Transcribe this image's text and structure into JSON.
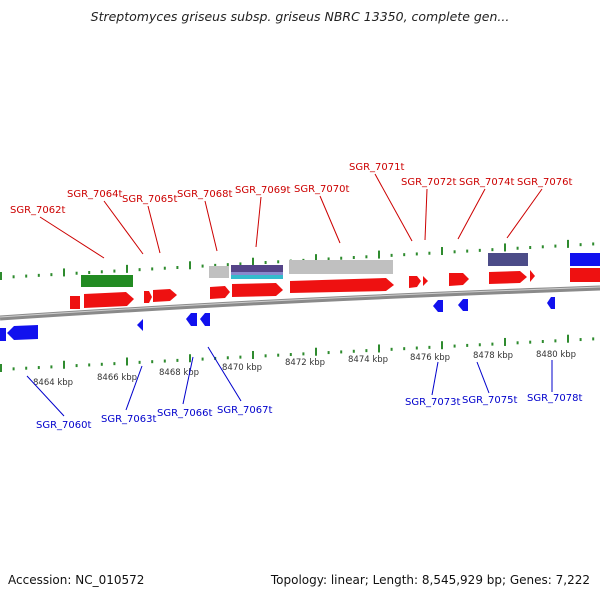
{
  "title": "Streptomyces griseus subsp. griseus NBRC 13350, complete gen...",
  "footer": {
    "accession": "Accession: NC_010572",
    "summary": "Topology: linear; Length: 8,545,929 bp; Genes: 7,222"
  },
  "colors": {
    "forward_gene": "#ee1111",
    "reverse_gene": "#1111ee",
    "top_label": "#cc0000",
    "bottom_label": "#0000cc",
    "ticks": "#2e8b2e",
    "backbone": "#888888"
  },
  "scale_labels": [
    "8464 kbp",
    "8466 kbp",
    "8468 kbp",
    "8470 kbp",
    "8472 kbp",
    "8474 kbp",
    "8476 kbp",
    "8478 kbp",
    "8480 kbp"
  ],
  "top_labels": [
    "SGR_7062t",
    "SGR_7064t",
    "SGR_7065t",
    "SGR_7068t",
    "SGR_7069t",
    "SGR_7070t",
    "SGR_7071t",
    "SGR_7072t",
    "SGR_7074t",
    "SGR_7076t"
  ],
  "bottom_labels": [
    "SGR_7060t",
    "SGR_7063t",
    "SGR_7066t",
    "SGR_7067t",
    "SGR_7073t",
    "SGR_7075t",
    "SGR_7078t"
  ]
}
